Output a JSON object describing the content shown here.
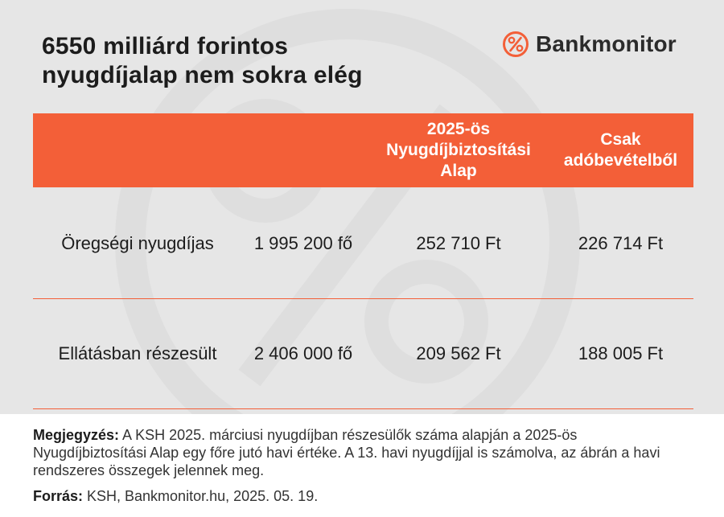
{
  "title_line1": "6550 milliárd forintos",
  "title_line2": "nyugdíjalap nem sokra elég",
  "brand": {
    "name": "Bankmonitor",
    "logo_glyph": "%",
    "color": "#f35f38"
  },
  "colors": {
    "accent": "#f35f38",
    "background": "#e6e6e6",
    "text": "#1c1c1c"
  },
  "chart_data": {
    "type": "table",
    "columns": [
      "",
      "",
      "2025-ös Nyugdíjbiztosítási Alap",
      "Csak adóbevételből"
    ],
    "column_lines": [
      [],
      [],
      [
        "2025-ös",
        "Nyugdíjbiztosítási",
        "Alap"
      ],
      [
        "Csak",
        "adóbevételből"
      ]
    ],
    "rows": [
      {
        "label": "Öregségi nyugdíjas",
        "count": "1 995 200 fő",
        "alap": "252 710 Ft",
        "ado": "226 714 Ft"
      },
      {
        "label": "Ellátásban részesült",
        "count": "2 406 000 fő",
        "alap": "209 562 Ft",
        "ado": "188 005 Ft"
      }
    ],
    "values": {
      "count": [
        1995200,
        2406000
      ],
      "alap": [
        252710,
        209562
      ],
      "ado": [
        226714,
        188005
      ]
    },
    "units": {
      "count": "fő",
      "money": "Ft"
    }
  },
  "note": {
    "label": "Megjegyzés:",
    "text": " A KSH 2025. márciusi nyugdíjban részesülők száma alapján a 2025-ös Nyugdíjbiztosítási Alap egy főre jutó havi értéke. A 13. havi nyugdíjjal is számolva, az ábrán a havi rendszeres összegek jelennek meg."
  },
  "source": {
    "label": "Forrás:",
    "text": " KSH, Bankmonitor.hu, 2025. 05. 19."
  }
}
